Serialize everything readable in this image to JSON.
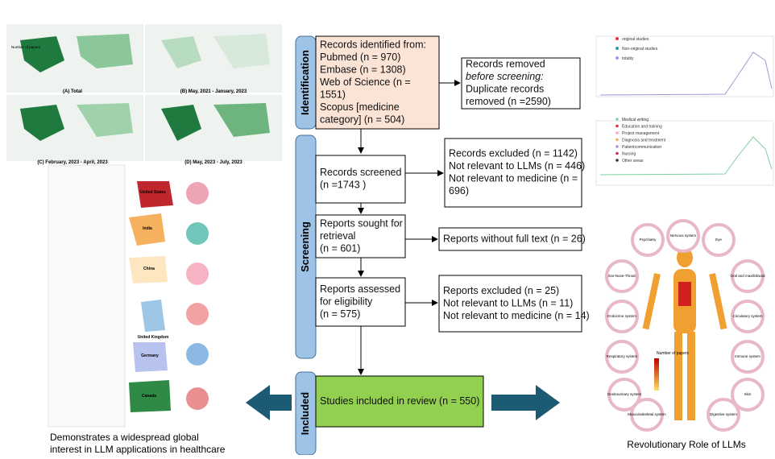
{
  "stages": [
    "Identification",
    "Screening",
    "Included"
  ],
  "boxes": {
    "identified": [
      "Records identified from:",
      "Pubmed (n = 970)",
      "Embase (n = 1308)",
      "Web of Science (n =",
      "1551)",
      "Scopus [medicine",
      "category]  (n = 504)"
    ],
    "removed": [
      "Records removed",
      "before screening:",
      "Duplicate records",
      "removed (n =2590)"
    ],
    "screened": [
      "Records screened",
      "(n =1743 )"
    ],
    "excluded": [
      "Records excluded (n = 1142)",
      "Not relevant to LLMs (n = 446)",
      "Not relevant to medicine (n =",
      "696)"
    ],
    "sought": [
      "Reports sought for",
      "retrieval",
      "(n = 601)"
    ],
    "nofull": [
      "Reports without full text (n = 26)"
    ],
    "assessed": [
      "Reports assessed",
      "for eligibility",
      "(n = 575)"
    ],
    "excluded2": [
      "Reports excluded (n = 25)",
      "Not relevant to LLMs (n = 11)",
      "Not relevant to medicine (n = 14)"
    ],
    "included": [
      "Studies included in review (n = 550)"
    ]
  },
  "captions": {
    "left": [
      "Demonstrates a widespread global",
      "interest in LLM applications in healthcare"
    ],
    "right": "Revolutionary Role of LLMs"
  },
  "maps": {
    "labels": [
      "(A) Total",
      "(B) May, 2021 - January, 2023",
      "(C) February, 2023 - April, 2023",
      "(D) May, 2023 - July, 2023"
    ],
    "legend_title": "Number of papers"
  },
  "countries": [
    "United States",
    "India",
    "China",
    "United Kingdom",
    "Germany",
    "Canada"
  ],
  "trend_legend_top": [
    "original studies",
    "Non-original studies",
    "totality"
  ],
  "trend_legend_bottom": [
    "Medical writing",
    "Education and training",
    "Project management",
    "Diagnosis and treatment",
    "Patientcommunication",
    "Nursing",
    "Other areas"
  ],
  "organs": [
    "Psychiatry",
    "Nervous system",
    "Eye",
    "Ear-Nose-Throat",
    "Oral and maxillofacial",
    "Endocrine system",
    "Circulatory system",
    "Respiratory system",
    "Immune system",
    "Genitourinary system",
    "Skin",
    "Musculoskeletal system",
    "Digestive system"
  ],
  "body_legend": "Number of papers"
}
